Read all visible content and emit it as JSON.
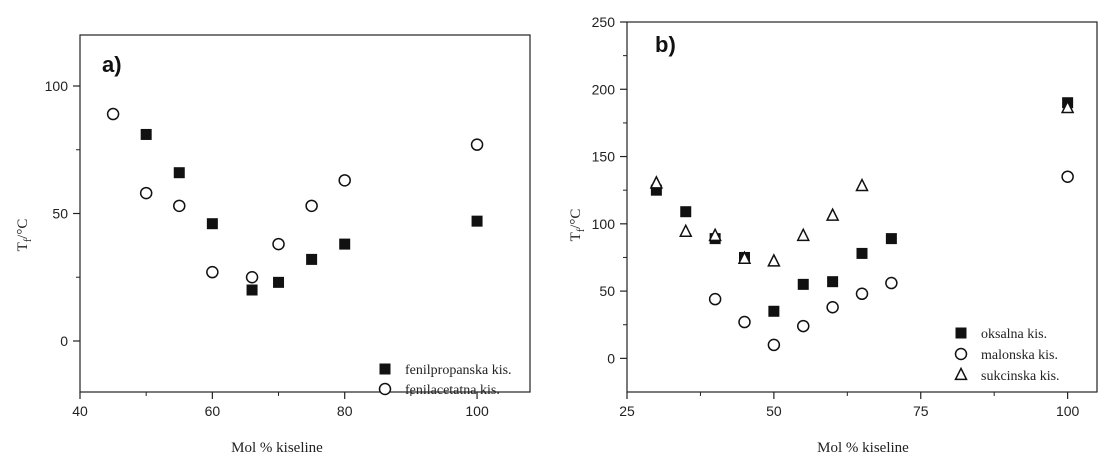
{
  "chart_data": [
    {
      "type": "scatter",
      "panel_label": "a)",
      "xlabel": "Mol % kiseline",
      "ylabel": "T_f /°C",
      "ylabel_main": "T",
      "ylabel_sub": "f",
      "ylabel_unit": "/°C",
      "xlim": [
        40,
        108
      ],
      "ylim": [
        -20,
        120
      ],
      "xticks": [
        40,
        60,
        80,
        100
      ],
      "yticks": [
        0,
        50,
        100
      ],
      "legend_position": "bottom-right",
      "series": [
        {
          "name": "fenilpropanska kis.",
          "marker": "filled-square",
          "points": [
            [
              50,
              81
            ],
            [
              55,
              66
            ],
            [
              60,
              46
            ],
            [
              66,
              20
            ],
            [
              70,
              23
            ],
            [
              75,
              32
            ],
            [
              80,
              38
            ],
            [
              100,
              47
            ]
          ]
        },
        {
          "name": "fenilacetatna kis.",
          "marker": "open-circle",
          "points": [
            [
              45,
              89
            ],
            [
              50,
              58
            ],
            [
              55,
              53
            ],
            [
              60,
              27
            ],
            [
              66,
              25
            ],
            [
              70,
              38
            ],
            [
              75,
              53
            ],
            [
              80,
              63
            ],
            [
              100,
              77
            ]
          ]
        }
      ]
    },
    {
      "type": "scatter",
      "panel_label": "b)",
      "xlabel": "Mol % kiseline",
      "ylabel": "T_f /°C",
      "ylabel_main": "T",
      "ylabel_sub": "f",
      "ylabel_unit": "/°C",
      "xlim": [
        25,
        105
      ],
      "ylim": [
        -25,
        250
      ],
      "xticks": [
        25,
        50,
        75,
        100
      ],
      "yticks": [
        0,
        50,
        100,
        150,
        200,
        250
      ],
      "legend_position": "bottom-right",
      "series": [
        {
          "name": "oksalna kis.",
          "marker": "filled-square",
          "points": [
            [
              30,
              125
            ],
            [
              35,
              109
            ],
            [
              40,
              89
            ],
            [
              45,
              75
            ],
            [
              50,
              35
            ],
            [
              55,
              55
            ],
            [
              60,
              57
            ],
            [
              65,
              78
            ],
            [
              70,
              89
            ],
            [
              100,
              190
            ]
          ]
        },
        {
          "name": "malonska kis.",
          "marker": "open-circle",
          "points": [
            [
              40,
              44
            ],
            [
              45,
              27
            ],
            [
              50,
              10
            ],
            [
              55,
              24
            ],
            [
              60,
              38
            ],
            [
              65,
              48
            ],
            [
              70,
              56
            ],
            [
              100,
              135
            ]
          ]
        },
        {
          "name": "sukcinska kis.",
          "marker": "open-triangle",
          "points": [
            [
              30,
              130
            ],
            [
              35,
              94
            ],
            [
              40,
              91
            ],
            [
              45,
              74
            ],
            [
              50,
              72
            ],
            [
              55,
              91
            ],
            [
              60,
              106
            ],
            [
              65,
              128
            ],
            [
              100,
              186
            ]
          ]
        }
      ]
    }
  ]
}
